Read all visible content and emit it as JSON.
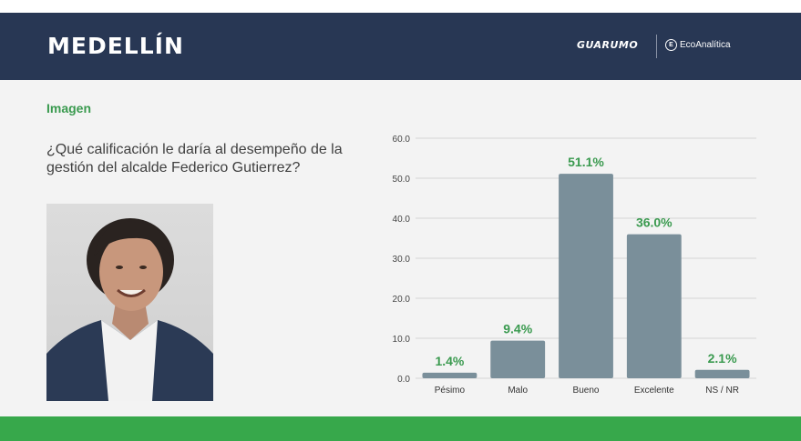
{
  "header": {
    "city": "MEDELLÍN",
    "logo_guarumo": "GUARUMO",
    "logo_eco": "EcoAnalítica"
  },
  "section_title": "Imagen",
  "question": "¿Qué calificación le daría al desempeño de la gestión del alcalde Federico Gutierrez?",
  "colors": {
    "header_bg": "#283754",
    "accent_green": "#37a84b",
    "bar": "#7a8f9a",
    "label_green": "#3a9a4f"
  },
  "chart_data": {
    "type": "bar",
    "categories": [
      "Pésimo",
      "Malo",
      "Bueno",
      "Excelente",
      "NS / NR"
    ],
    "values": [
      1.4,
      9.4,
      51.1,
      36.0,
      2.1
    ],
    "data_labels": [
      "1.4%",
      "9.4%",
      "51.1%",
      "36.0%",
      "2.1%"
    ],
    "yticks": [
      "0.0",
      "10.0",
      "20.0",
      "30.0",
      "40.0",
      "50.0",
      "60.0"
    ],
    "ylim": [
      0,
      60
    ],
    "grid": true
  }
}
